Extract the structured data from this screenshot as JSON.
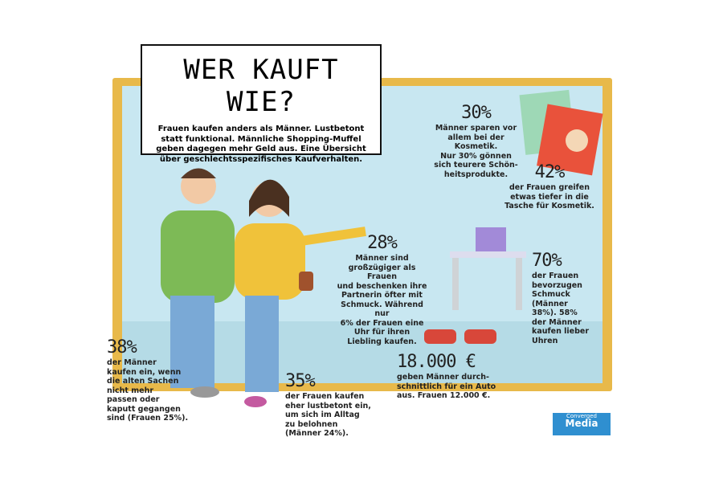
{
  "header": {
    "title": "WER KAUFT WIE?",
    "intro": [
      "Frauen kaufen anders als Männer. Lustbetont",
      "statt funktional. Männliche Shopping-Muffel",
      "geben dagegen mehr Geld aus. Eine Übersicht",
      "über geschlechtsspezifisches Kaufverhalten."
    ]
  },
  "stats": [
    {
      "value": "30%",
      "text": [
        "Männer sparen vor",
        "allem bei der Kosmetik.",
        "Nur 30% gönnen",
        "sich teurere Schön-",
        "heitsprodukte."
      ]
    },
    {
      "value": "42%",
      "text": [
        "der Frauen greifen",
        "etwas tiefer in die",
        "Tasche für Kosmetik."
      ]
    },
    {
      "value": "28%",
      "text": [
        "Männer sind",
        "großzügiger als Frauen",
        "und beschenken ihre",
        "Partnerin öfter mit",
        "Schmuck. Während nur",
        "6% der Frauen eine",
        "Uhr für ihren",
        "Liebling kaufen."
      ]
    },
    {
      "value": "70%",
      "text": [
        "der Frauen",
        "bevorzugen",
        "Schmuck",
        "(Männer",
        "38%). 58%",
        "der Männer",
        "kaufen lieber",
        "Uhren"
      ]
    },
    {
      "value": "38%",
      "text": [
        "der Männer",
        "kaufen ein, wenn",
        "die alten Sachen",
        "nicht mehr",
        "passen oder",
        "kaputt gegangen",
        "sind (Frauen 25%)."
      ]
    },
    {
      "value": "35%",
      "text": [
        "der Frauen kaufen",
        "eher lustbetont ein,",
        "um sich im Alltag",
        "zu belohnen",
        "(Männer 24%)."
      ]
    },
    {
      "value": "18.000 €",
      "text": [
        "geben Männer durch-",
        "schnittlich für ein Auto",
        "aus. Frauen 12.000 €."
      ]
    }
  ],
  "logo": {
    "line1": "Converged",
    "line2": "Media"
  }
}
